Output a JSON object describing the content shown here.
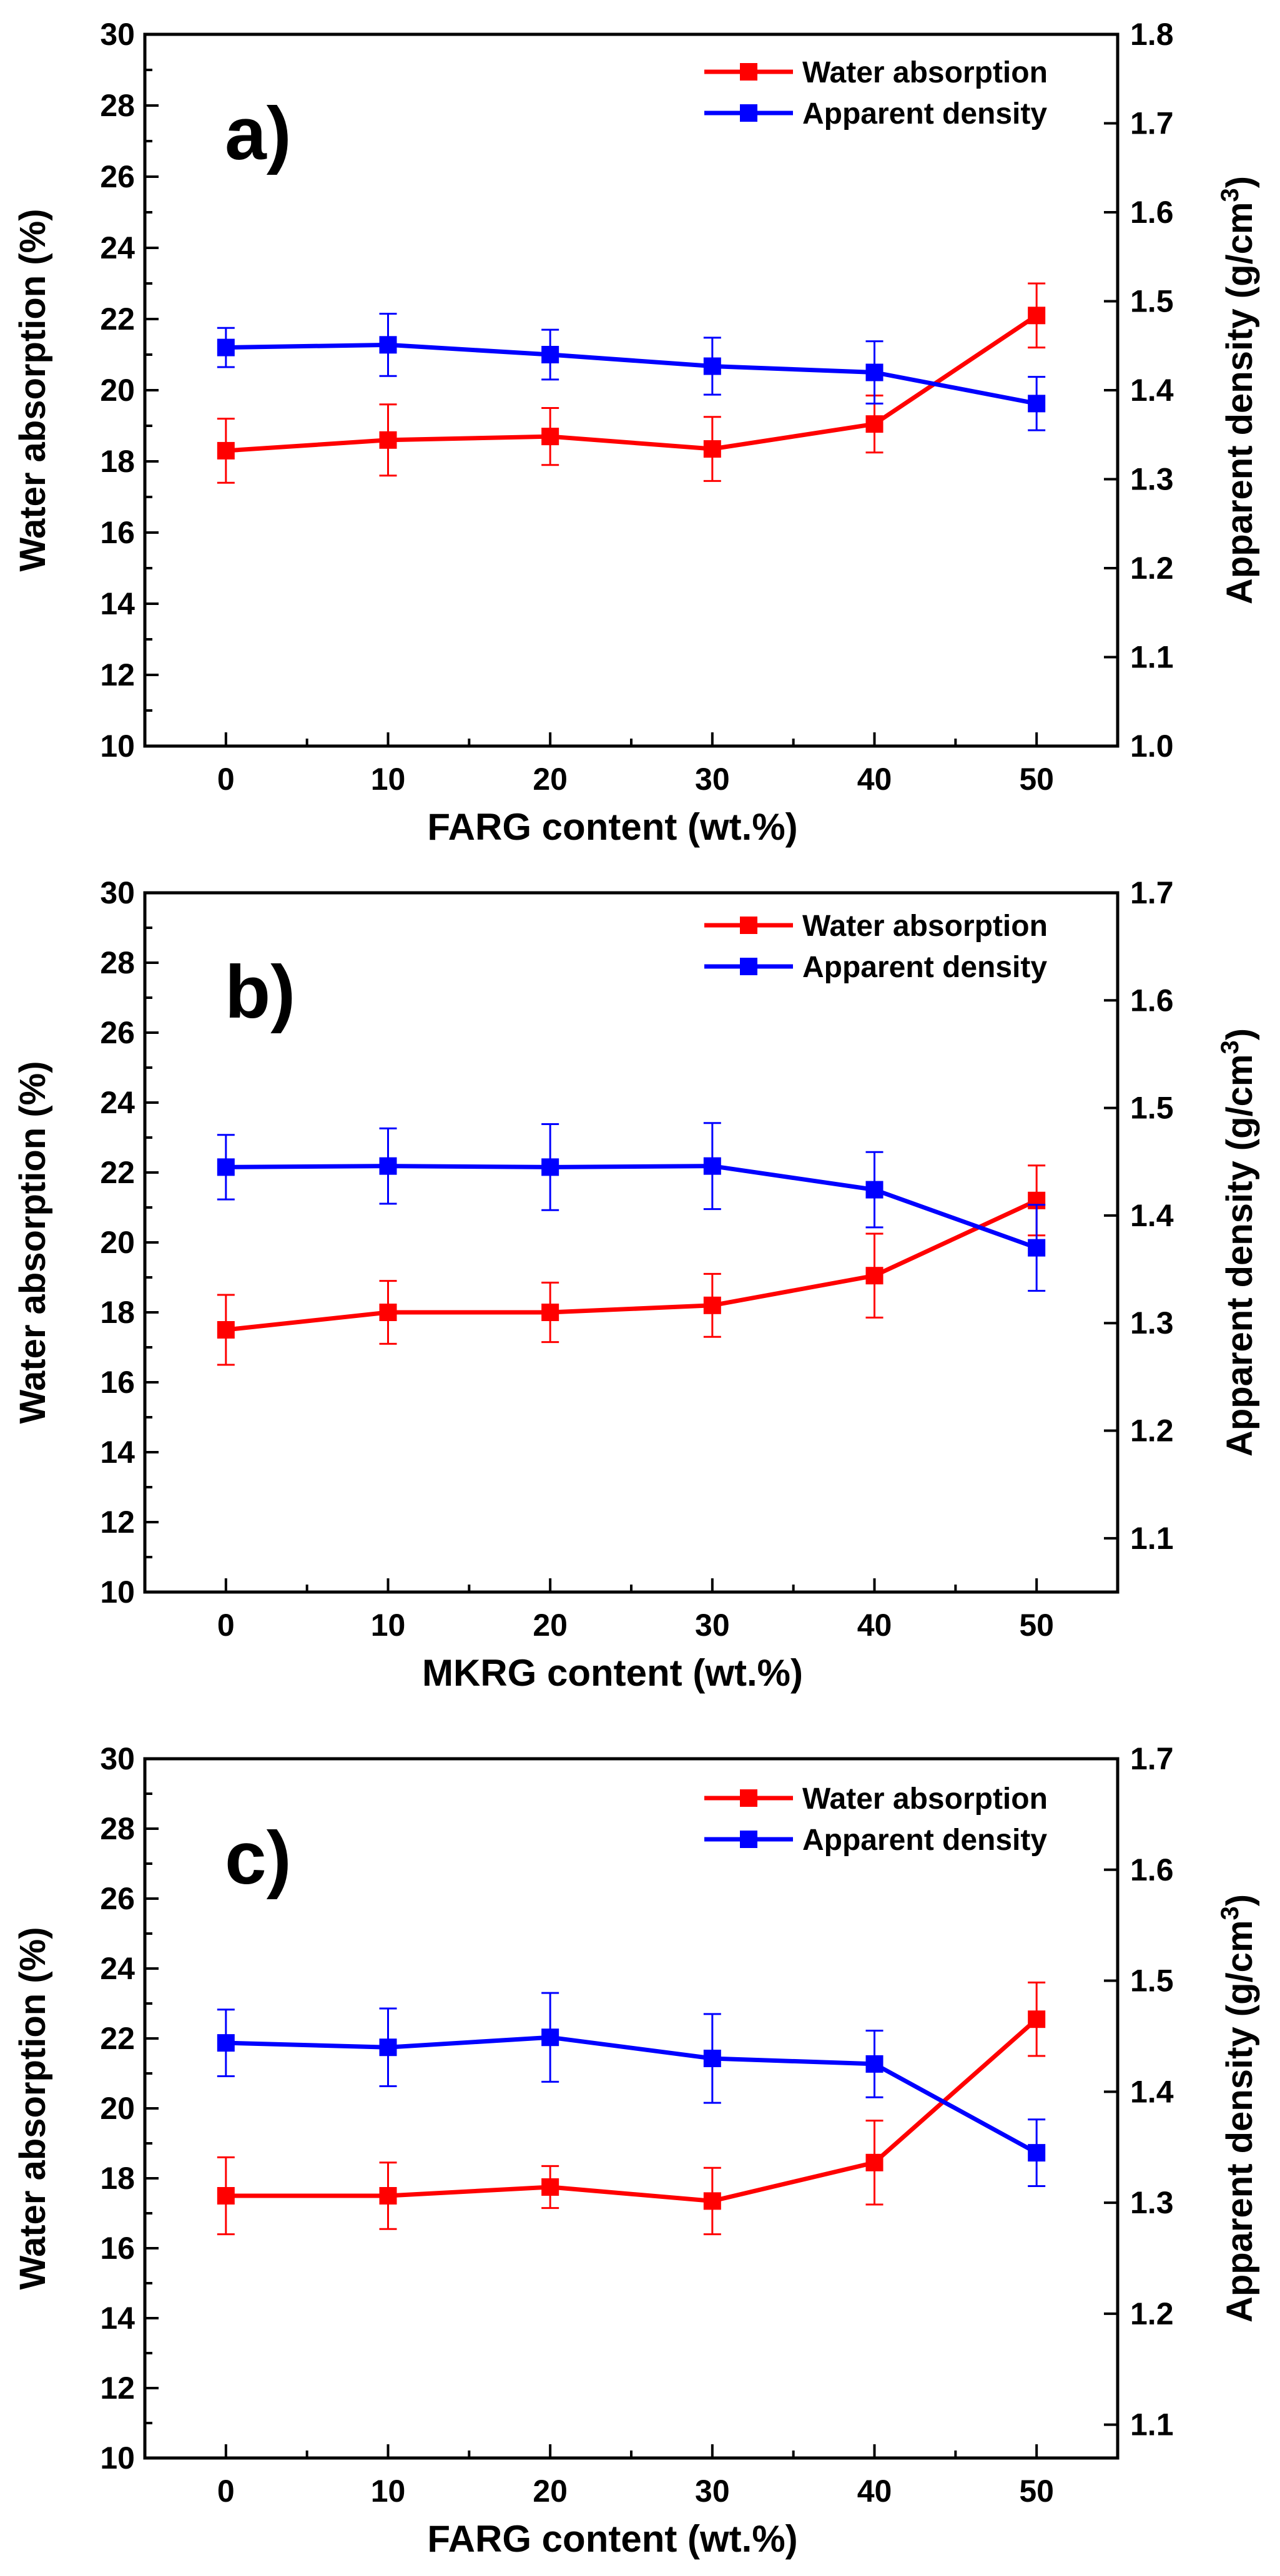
{
  "chart_data": [
    {
      "type": "line",
      "panel_label": "a)",
      "xlabel": "FARG content",
      "xlabel_unit": "(wt.%)",
      "ylabel": "Water absorption",
      "ylabel_unit": "(%)",
      "y2label": "Apparent density",
      "y2label_unit": "(g/cm",
      "y2label_sup": "3",
      "y2label_close": ")",
      "legend_position": "top-right",
      "x": [
        0,
        10,
        20,
        30,
        40,
        50
      ],
      "xlim": [
        -5,
        55
      ],
      "xticks": [
        "0",
        "10",
        "20",
        "30",
        "40",
        "50"
      ],
      "ylim": [
        10,
        30
      ],
      "yticks": [
        "10",
        "12",
        "14",
        "16",
        "18",
        "20",
        "22",
        "24",
        "26",
        "28",
        "30"
      ],
      "y2lim": [
        1.0,
        1.8
      ],
      "y2ticks": [
        "1.0",
        "1.1",
        "1.2",
        "1.3",
        "1.4",
        "1.5",
        "1.6",
        "1.7",
        "1.8"
      ],
      "series": [
        {
          "name": "Water absorption",
          "axis": "left",
          "color": "#ff0000",
          "values": [
            18.3,
            18.6,
            18.7,
            18.35,
            19.05,
            22.1
          ],
          "errors": [
            0.9,
            1.0,
            0.8,
            0.9,
            0.8,
            0.9
          ]
        },
        {
          "name": "Apparent density",
          "axis": "right",
          "color": "#0000ff",
          "values": [
            1.448,
            1.451,
            1.44,
            1.427,
            1.42,
            1.385
          ],
          "errors": [
            0.022,
            0.035,
            0.028,
            0.032,
            0.035,
            0.03
          ]
        }
      ]
    },
    {
      "type": "line",
      "panel_label": "b)",
      "xlabel": "MKRG content",
      "xlabel_unit": "(wt.%)",
      "ylabel": "Water absorption",
      "ylabel_unit": "(%)",
      "y2label": "Apparent density",
      "y2label_unit": "(g/cm",
      "y2label_sup": "3",
      "y2label_close": ")",
      "legend_position": "top-right",
      "x": [
        0,
        10,
        20,
        30,
        40,
        50
      ],
      "xlim": [
        -5,
        55
      ],
      "xticks": [
        "0",
        "10",
        "20",
        "30",
        "40",
        "50"
      ],
      "ylim": [
        10,
        30
      ],
      "yticks": [
        "10",
        "12",
        "14",
        "16",
        "18",
        "20",
        "22",
        "24",
        "26",
        "28",
        "30"
      ],
      "y2lim": [
        1.05,
        1.7
      ],
      "y2ticks": [
        "1.1",
        "1.2",
        "1.3",
        "1.4",
        "1.5",
        "1.6",
        "1.7"
      ],
      "series": [
        {
          "name": "Water absorption",
          "axis": "left",
          "color": "#ff0000",
          "values": [
            17.5,
            18.0,
            18.0,
            18.2,
            19.05,
            21.2
          ],
          "errors": [
            1.0,
            0.9,
            0.85,
            0.9,
            1.2,
            1.0
          ]
        },
        {
          "name": "Apparent density",
          "axis": "right",
          "color": "#0000ff",
          "values": [
            1.445,
            1.446,
            1.445,
            1.446,
            1.424,
            1.37
          ],
          "errors": [
            0.03,
            0.035,
            0.04,
            0.04,
            0.035,
            0.04
          ]
        }
      ]
    },
    {
      "type": "line",
      "panel_label": "c)",
      "xlabel": "FARG content",
      "xlabel_unit": "(wt.%)",
      "ylabel": "Water absorption",
      "ylabel_unit": "(%)",
      "y2label": "Apparent density",
      "y2label_unit": "(g/cm",
      "y2label_sup": "3",
      "y2label_close": ")",
      "legend_position": "top-right",
      "x": [
        0,
        10,
        20,
        30,
        40,
        50
      ],
      "xlim": [
        -5,
        55
      ],
      "xticks": [
        "0",
        "10",
        "20",
        "30",
        "40",
        "50"
      ],
      "ylim": [
        10,
        30
      ],
      "yticks": [
        "10",
        "12",
        "14",
        "16",
        "18",
        "20",
        "22",
        "24",
        "26",
        "28",
        "30"
      ],
      "y2lim": [
        1.07,
        1.7
      ],
      "y2ticks": [
        "1.1",
        "1.2",
        "1.3",
        "1.4",
        "1.5",
        "1.6",
        "1.7"
      ],
      "series": [
        {
          "name": "Water absorption",
          "axis": "left",
          "color": "#ff0000",
          "values": [
            17.5,
            17.5,
            17.75,
            17.35,
            18.45,
            22.55
          ],
          "errors": [
            1.1,
            0.95,
            0.6,
            0.95,
            1.2,
            1.05
          ]
        },
        {
          "name": "Apparent density",
          "axis": "right",
          "color": "#0000ff",
          "values": [
            1.444,
            1.44,
            1.449,
            1.43,
            1.425,
            1.345
          ],
          "errors": [
            0.03,
            0.035,
            0.04,
            0.04,
            0.03,
            0.03
          ]
        }
      ]
    }
  ]
}
